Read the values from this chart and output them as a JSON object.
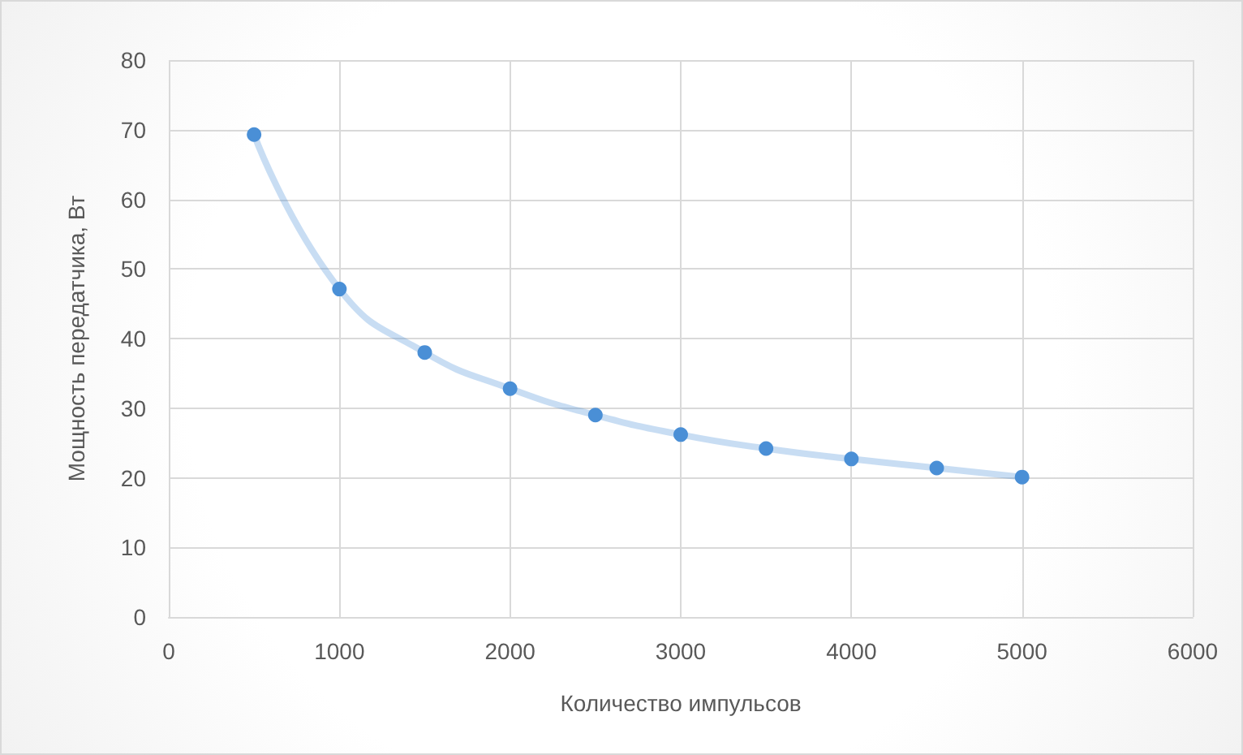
{
  "chart_data": {
    "type": "line",
    "xlabel": "Количество импульсов",
    "ylabel": "Мощность передатчика, Вт",
    "x": [
      500,
      1000,
      1500,
      2000,
      2500,
      3000,
      3500,
      4000,
      4500,
      5000
    ],
    "series": [
      {
        "color": "#4a8fd6",
        "values": [
          69.3,
          47.1,
          38.0,
          32.8,
          29.0,
          26.2,
          24.2,
          22.7,
          21.4,
          20.1
        ]
      }
    ],
    "xlim": [
      0,
      6000
    ],
    "xticks": [
      0,
      1000,
      2000,
      3000,
      4000,
      5000,
      6000
    ],
    "ylim": [
      0,
      80
    ],
    "yticks": [
      0,
      10,
      20,
      30,
      40,
      50,
      60,
      70,
      80
    ],
    "grid": true,
    "marker": "circle",
    "line_style": "solid"
  }
}
